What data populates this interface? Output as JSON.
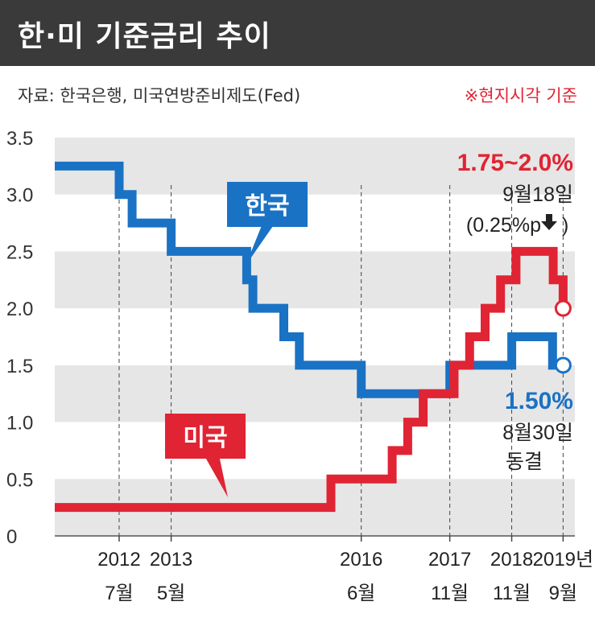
{
  "header": {
    "title": "한·미 기준금리 추이",
    "source": "자료: 한국은행, 미국연방준비제도(Fed)",
    "note": "※현지시각 기준"
  },
  "colors": {
    "korea": "#1a72c4",
    "us": "#e02434",
    "title_bg": "#3a3a3a",
    "band": "#e6e6e6"
  },
  "chart_data": {
    "type": "line",
    "title": "",
    "xlabel": "",
    "ylabel": "",
    "ylim": [
      0,
      3.5
    ],
    "xlim": [
      2011.5,
      2019.9
    ],
    "grid": "horizontal bands",
    "yticks": [
      "0",
      "0.5",
      "1.0",
      "1.5",
      "2.0",
      "2.5",
      "3.0",
      "3.5"
    ],
    "xticks": [
      {
        "x": 2012.54,
        "year": "2012",
        "month": "7월"
      },
      {
        "x": 2013.38,
        "year": "2013",
        "month": "5월"
      },
      {
        "x": 2016.45,
        "year": "2016",
        "month": "6월"
      },
      {
        "x": 2017.88,
        "year": "2017",
        "month": "11월"
      },
      {
        "x": 2018.88,
        "year": "2018",
        "month": "11월"
      },
      {
        "x": 2019.71,
        "year": "2019년",
        "month": "9월"
      }
    ],
    "series": [
      {
        "name": "한국",
        "color_key": "korea",
        "points": [
          [
            2011.5,
            3.25
          ],
          [
            2012.54,
            3.0
          ],
          [
            2012.75,
            2.75
          ],
          [
            2013.38,
            2.5
          ],
          [
            2014.6,
            2.25
          ],
          [
            2014.7,
            2.0
          ],
          [
            2015.2,
            1.75
          ],
          [
            2015.45,
            1.5
          ],
          [
            2016.45,
            1.25
          ],
          [
            2017.88,
            1.5
          ],
          [
            2018.88,
            1.75
          ],
          [
            2019.54,
            1.5
          ],
          [
            2019.71,
            1.5
          ]
        ],
        "end_label": "1.50%",
        "end_date": "8월30일",
        "end_status": "동결"
      },
      {
        "name": "미국",
        "color_key": "us",
        "points": [
          [
            2011.5,
            0.25
          ],
          [
            2015.96,
            0.5
          ],
          [
            2016.95,
            0.75
          ],
          [
            2017.2,
            1.0
          ],
          [
            2017.45,
            1.25
          ],
          [
            2017.95,
            1.5
          ],
          [
            2018.2,
            1.75
          ],
          [
            2018.45,
            2.0
          ],
          [
            2018.7,
            2.25
          ],
          [
            2018.95,
            2.5
          ],
          [
            2019.55,
            2.25
          ],
          [
            2019.71,
            2.0
          ]
        ],
        "end_label": "1.75~2.0%",
        "end_date": "9월18일",
        "end_change": "(0.25%p"
      }
    ],
    "callouts": [
      {
        "text": "한국",
        "color_key": "korea"
      },
      {
        "text": "미국",
        "color_key": "us"
      }
    ]
  }
}
